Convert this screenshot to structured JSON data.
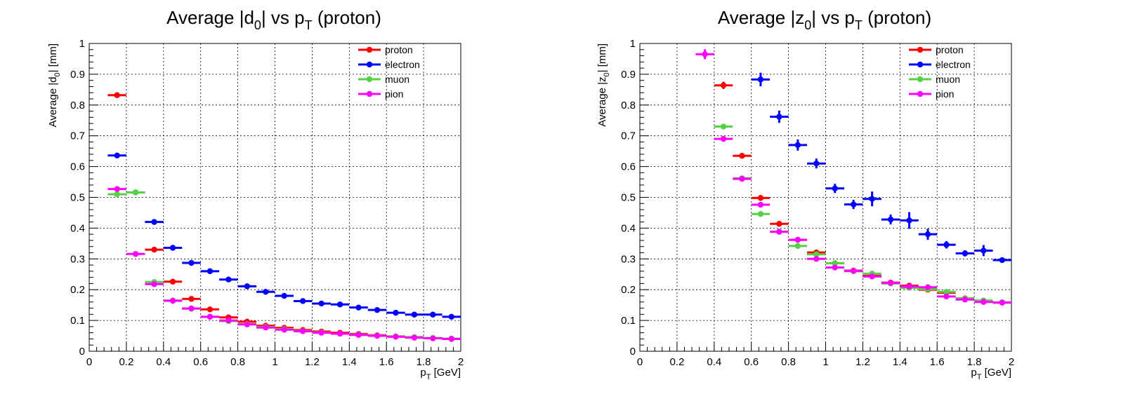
{
  "charts": [
    {
      "title": {
        "pre": "Average |d",
        "sub1": "0",
        "mid": "| vs p",
        "sub2": "T",
        "post": " (proton)"
      },
      "ylabel": {
        "pre": "Average |d",
        "sub": "0",
        "post": "| [mm]"
      },
      "xlabel": {
        "pre": "p",
        "sub": "T",
        "post": " [GeV]"
      }
    },
    {
      "title": {
        "pre": "Average |z",
        "sub1": "0",
        "mid": "| vs p",
        "sub2": "T",
        "post": " (proton)"
      },
      "ylabel": {
        "pre": "Average |z",
        "sub": "0",
        "post": "| [mm]"
      },
      "xlabel": {
        "pre": "p",
        "sub": "T",
        "post": " [GeV]"
      }
    }
  ],
  "chart_data": [
    {
      "type": "scatter",
      "title": "Average |d0| vs pT (proton)",
      "xlabel": "pT [GeV]",
      "ylabel": "Average |d0| [mm]",
      "xlim": [
        0,
        2
      ],
      "ylim": [
        0,
        1
      ],
      "xticks": [
        "0",
        "0.2",
        "0.4",
        "0.6",
        "0.8",
        "1",
        "1.2",
        "1.4",
        "1.6",
        "1.8",
        "2"
      ],
      "yticks": [
        "0",
        "0.1",
        "0.2",
        "0.3",
        "0.4",
        "0.5",
        "0.6",
        "0.7",
        "0.8",
        "0.9",
        "1"
      ],
      "grid": true,
      "legend": "top-right",
      "bin_half_width": 0.05,
      "series": [
        {
          "name": "proton",
          "color": "#ff0000",
          "x": [
            0.15,
            0.35,
            0.45,
            0.55,
            0.65,
            0.75,
            0.85,
            0.95,
            1.05,
            1.15,
            1.25,
            1.35,
            1.45,
            1.55,
            1.65,
            1.75,
            1.85,
            1.95
          ],
          "y": [
            0.832,
            0.33,
            0.226,
            0.17,
            0.136,
            0.11,
            0.096,
            0.083,
            0.076,
            0.069,
            0.064,
            0.06,
            0.056,
            0.052,
            0.048,
            0.045,
            0.042,
            0.04
          ],
          "yerr": [
            0.006,
            0.004,
            0.003,
            0.003,
            0.003,
            0.002,
            0.002,
            0.002,
            0.002,
            0.002,
            0.002,
            0.002,
            0.002,
            0.002,
            0.002,
            0.002,
            0.002,
            0.002
          ]
        },
        {
          "name": "electron",
          "color": "#0000ff",
          "x": [
            0.15,
            0.25,
            0.35,
            0.45,
            0.55,
            0.65,
            0.75,
            0.85,
            0.95,
            1.05,
            1.15,
            1.25,
            1.35,
            1.45,
            1.55,
            1.65,
            1.75,
            1.85,
            1.95
          ],
          "y": [
            0.636,
            0.516,
            0.42,
            0.336,
            0.287,
            0.26,
            0.233,
            0.211,
            0.193,
            0.18,
            0.163,
            0.155,
            0.152,
            0.142,
            0.134,
            0.125,
            0.119,
            0.119,
            0.112
          ],
          "yerr": [
            0.004,
            0.004,
            0.004,
            0.004,
            0.003,
            0.003,
            0.003,
            0.003,
            0.003,
            0.003,
            0.003,
            0.003,
            0.003,
            0.003,
            0.003,
            0.003,
            0.003,
            0.003,
            0.003
          ]
        },
        {
          "name": "muon",
          "color": "#56d146",
          "x": [
            0.15,
            0.25,
            0.35,
            0.45,
            0.55,
            0.65,
            0.75,
            0.85,
            0.95,
            1.05,
            1.15,
            1.25,
            1.35,
            1.45,
            1.55,
            1.65,
            1.75,
            1.85,
            1.95
          ],
          "y": [
            0.51,
            0.516,
            0.225,
            0.165,
            0.138,
            0.112,
            0.098,
            0.088,
            0.079,
            0.072,
            0.066,
            0.061,
            0.057,
            0.054,
            0.051,
            0.048,
            0.046,
            0.043,
            0.041
          ],
          "yerr": [
            0.004,
            0.004,
            0.003,
            0.003,
            0.003,
            0.002,
            0.002,
            0.002,
            0.002,
            0.002,
            0.002,
            0.002,
            0.002,
            0.002,
            0.002,
            0.002,
            0.002,
            0.002,
            0.002
          ]
        },
        {
          "name": "pion",
          "color": "#ff00ff",
          "x": [
            0.15,
            0.25,
            0.35,
            0.45,
            0.55,
            0.65,
            0.75,
            0.85,
            0.95,
            1.05,
            1.15,
            1.25,
            1.35,
            1.45,
            1.55,
            1.65,
            1.75,
            1.85,
            1.95
          ],
          "y": [
            0.527,
            0.316,
            0.218,
            0.164,
            0.139,
            0.112,
            0.1,
            0.087,
            0.077,
            0.07,
            0.065,
            0.06,
            0.057,
            0.053,
            0.05,
            0.047,
            0.044,
            0.042,
            0.04
          ],
          "yerr": [
            0.004,
            0.004,
            0.003,
            0.003,
            0.003,
            0.002,
            0.002,
            0.002,
            0.002,
            0.002,
            0.002,
            0.002,
            0.002,
            0.002,
            0.002,
            0.002,
            0.002,
            0.002,
            0.002
          ]
        }
      ]
    },
    {
      "type": "scatter",
      "title": "Average |z0| vs pT (proton)",
      "xlabel": "pT [GeV]",
      "ylabel": "Average |z0| [mm]",
      "xlim": [
        0,
        2
      ],
      "ylim": [
        0,
        1
      ],
      "xticks": [
        "0",
        "0.2",
        "0.4",
        "0.6",
        "0.8",
        "1",
        "1.2",
        "1.4",
        "1.6",
        "1.8",
        "2"
      ],
      "yticks": [
        "0",
        "0.1",
        "0.2",
        "0.3",
        "0.4",
        "0.5",
        "0.6",
        "0.7",
        "0.8",
        "0.9",
        "1"
      ],
      "grid": true,
      "legend": "top-right",
      "bin_half_width": 0.05,
      "series": [
        {
          "name": "proton",
          "color": "#ff0000",
          "x": [
            0.45,
            0.55,
            0.65,
            0.75,
            0.85,
            0.95,
            1.05,
            1.15,
            1.25,
            1.35,
            1.45,
            1.55,
            1.65,
            1.75,
            1.85,
            1.95
          ],
          "y": [
            0.864,
            0.635,
            0.498,
            0.414,
            0.362,
            0.321,
            0.286,
            0.262,
            0.245,
            0.223,
            0.213,
            0.2,
            0.19,
            0.172,
            0.162,
            0.158
          ],
          "yerr": [
            0.012,
            0.008,
            0.007,
            0.006,
            0.005,
            0.005,
            0.005,
            0.005,
            0.005,
            0.005,
            0.005,
            0.005,
            0.005,
            0.005,
            0.005,
            0.005
          ]
        },
        {
          "name": "electron",
          "color": "#0000ff",
          "x": [
            0.65,
            0.75,
            0.85,
            0.95,
            1.05,
            1.15,
            1.25,
            1.35,
            1.45,
            1.55,
            1.65,
            1.75,
            1.85,
            1.95
          ],
          "y": [
            0.883,
            0.762,
            0.67,
            0.61,
            0.529,
            0.477,
            0.495,
            0.428,
            0.425,
            0.38,
            0.346,
            0.318,
            0.327,
            0.296
          ],
          "yerr": [
            0.022,
            0.02,
            0.018,
            0.016,
            0.015,
            0.015,
            0.024,
            0.016,
            0.027,
            0.018,
            0.012,
            0.01,
            0.018,
            0.008
          ]
        },
        {
          "name": "muon",
          "color": "#56d146",
          "x": [
            0.45,
            0.55,
            0.65,
            0.75,
            0.85,
            0.95,
            1.05,
            1.15,
            1.25,
            1.35,
            1.45,
            1.55,
            1.65,
            1.75,
            1.85,
            1.95
          ],
          "y": [
            0.73,
            0.562,
            0.446,
            0.389,
            0.342,
            0.315,
            0.286,
            0.26,
            0.252,
            0.22,
            0.206,
            0.202,
            0.193,
            0.172,
            0.165,
            0.159
          ],
          "yerr": [
            0.008,
            0.008,
            0.006,
            0.005,
            0.005,
            0.005,
            0.005,
            0.005,
            0.005,
            0.005,
            0.005,
            0.005,
            0.005,
            0.005,
            0.005,
            0.005
          ]
        },
        {
          "name": "pion",
          "color": "#ff00ff",
          "x": [
            0.35,
            0.45,
            0.55,
            0.65,
            0.75,
            0.85,
            0.95,
            1.05,
            1.15,
            1.25,
            1.35,
            1.45,
            1.55,
            1.65,
            1.75,
            1.85,
            1.95
          ],
          "y": [
            0.965,
            0.69,
            0.56,
            0.476,
            0.388,
            0.362,
            0.3,
            0.272,
            0.261,
            0.243,
            0.222,
            0.21,
            0.208,
            0.178,
            0.168,
            0.16,
            0.158
          ],
          "yerr": [
            0.016,
            0.008,
            0.007,
            0.006,
            0.005,
            0.005,
            0.005,
            0.005,
            0.005,
            0.005,
            0.005,
            0.005,
            0.005,
            0.005,
            0.005,
            0.005,
            0.005
          ]
        }
      ]
    }
  ]
}
